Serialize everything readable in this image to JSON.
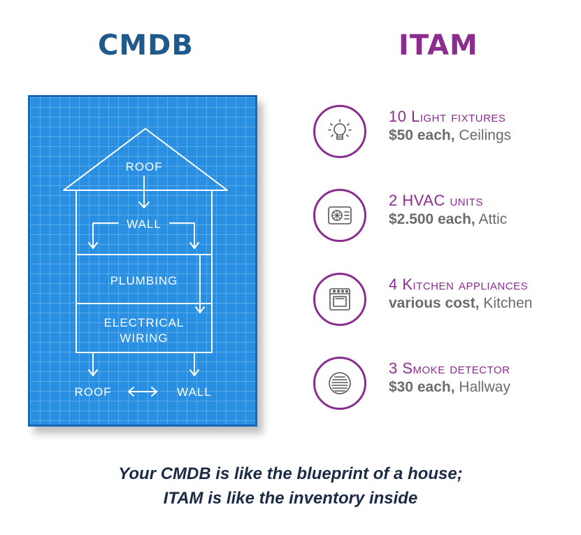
{
  "headings": {
    "cmdb": "CMDB",
    "itam": "ITAM"
  },
  "blueprint": {
    "labels": {
      "roof_top": "ROOF",
      "wall": "WALL",
      "plumbing": "PLUMBING",
      "electrical_line1": "ELECTRICAL",
      "electrical_line2": "WIRING",
      "roof_bottom": "ROOF",
      "wall_bottom": "WALL"
    }
  },
  "items": [
    {
      "icon": "light-bulb-icon",
      "name": "10 Light fixtures",
      "cost": "$50 each,",
      "location": "Ceilings"
    },
    {
      "icon": "hvac-unit-icon",
      "name": "2 HVAC units",
      "cost": "$2.500 each,",
      "location": "Attic"
    },
    {
      "icon": "oven-icon",
      "name": "4 Kitchen appliances",
      "cost": "various cost,",
      "location": "Kitchen"
    },
    {
      "icon": "smoke-detector-icon",
      "name": "3 Smoke detector",
      "cost": "$30 each,",
      "location": "Hallway"
    }
  ],
  "caption": {
    "line1": "Your CMDB is like the blueprint of a house;",
    "line2": "ITAM is like the inventory inside"
  },
  "colors": {
    "cmdb": "#1f5a8a",
    "itam": "#8a2d8f",
    "blueprint": "#2a8fe0",
    "caption": "#1c2b45"
  }
}
